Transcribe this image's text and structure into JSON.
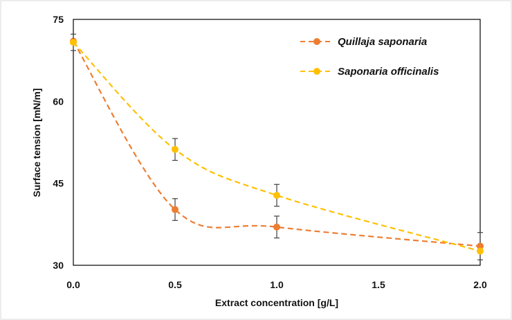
{
  "chart_data": {
    "type": "line",
    "title": "",
    "xlabel": "Extract concentration [g/L]",
    "ylabel": "Surface tension [mN/m]",
    "xlim": [
      0,
      2
    ],
    "ylim": [
      30,
      75
    ],
    "xticks": [
      0.0,
      0.5,
      1.0,
      1.5,
      2.0
    ],
    "xtick_labels": [
      "0.0",
      "0.5",
      "1.0",
      "1.5",
      "2.0"
    ],
    "yticks": [
      30,
      45,
      60,
      75
    ],
    "ytick_labels": [
      "30",
      "45",
      "60",
      "75"
    ],
    "grid": false,
    "legend_position": "top-right",
    "series": [
      {
        "name": "Quillaja saponaria",
        "color": "#ED7D31",
        "line_style": "dashed",
        "x": [
          0.0,
          0.5,
          1.0,
          2.0
        ],
        "y": [
          71.0,
          40.2,
          37.0,
          33.5
        ],
        "error": [
          0,
          2.0,
          2.0,
          2.5
        ]
      },
      {
        "name": "Saponaria officinalis",
        "color": "#FFC000",
        "line_style": "dashed",
        "x": [
          0.0,
          0.5,
          1.0,
          2.0
        ],
        "y": [
          70.8,
          51.2,
          42.8,
          32.6
        ],
        "error": [
          1.5,
          2.0,
          2.0,
          0
        ]
      }
    ]
  }
}
